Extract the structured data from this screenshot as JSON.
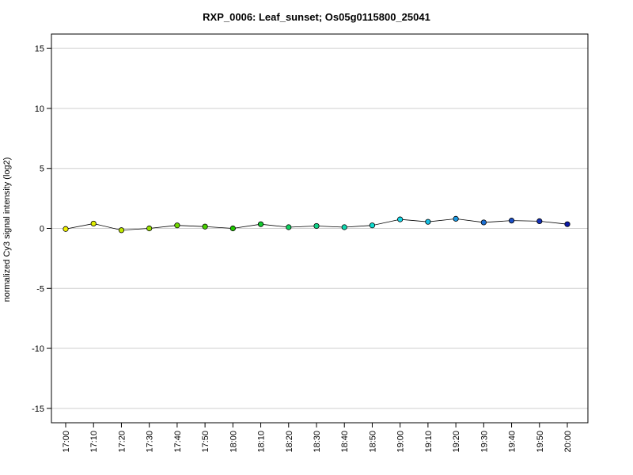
{
  "chart_data": {
    "type": "line",
    "title": "RXP_0006: Leaf_sunset; Os05g0115800_25041",
    "ylabel": "normalized Cy3 signal intensity (log2)",
    "xlabel": "",
    "ylim": [
      -16.2,
      16.2
    ],
    "yticks": [
      15,
      10,
      5,
      0,
      -5,
      -10,
      -15
    ],
    "ytick_labels": [
      "15",
      "10",
      "5",
      "0",
      "-5",
      "-10",
      "-15"
    ],
    "grid": true,
    "categories": [
      "17:00",
      "17:10",
      "17:20",
      "17:30",
      "17:40",
      "17:50",
      "18:00",
      "18:10",
      "18:20",
      "18:30",
      "18:40",
      "18:50",
      "19:00",
      "19:10",
      "19:20",
      "19:30",
      "19:40",
      "19:50",
      "20:00"
    ],
    "series": [
      {
        "values": [
          -0.05,
          0.4,
          -0.15,
          0.0,
          0.25,
          0.15,
          0.0,
          0.35,
          0.1,
          0.2,
          0.1,
          0.25,
          0.75,
          0.55,
          0.8,
          0.5,
          0.65,
          0.6,
          0.35
        ],
        "point_colors": [
          "#f0f000",
          "#e0ee00",
          "#c0e800",
          "#98e000",
          "#70d800",
          "#48d000",
          "#20c800",
          "#14cc30",
          "#10d060",
          "#10d488",
          "#10d8b0",
          "#10dcd0",
          "#14d8e8",
          "#18c0e4",
          "#1c98e0",
          "#1c70d4",
          "#1c50c8",
          "#1430b8",
          "#0c18a8"
        ]
      }
    ]
  }
}
